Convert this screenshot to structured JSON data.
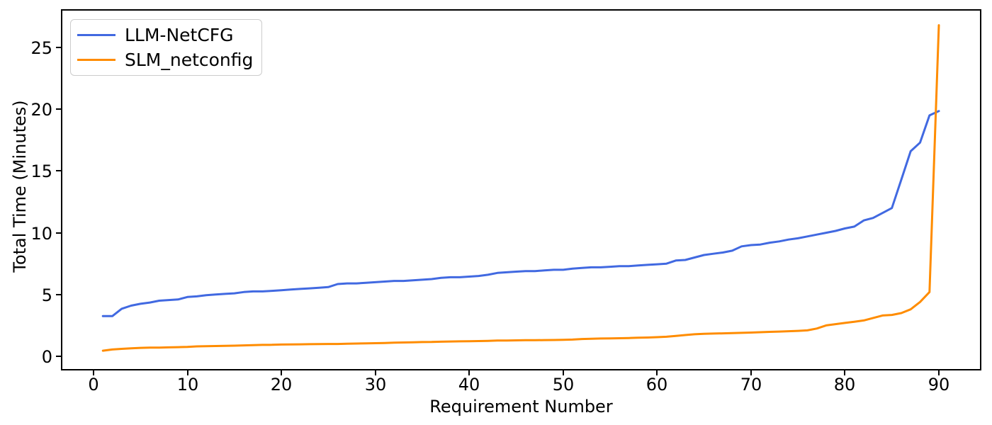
{
  "chart_data": {
    "type": "line",
    "title": "",
    "xlabel": "Requirement Number",
    "ylabel": "Total Time (Minutes)",
    "grid": false,
    "legend_position": "upper-left",
    "x_ticks": [
      0,
      10,
      20,
      30,
      40,
      50,
      60,
      70,
      80,
      90
    ],
    "y_ticks": [
      0,
      5,
      10,
      15,
      20,
      25
    ],
    "xlim": [
      -3.39,
      94.45
    ],
    "ylim": [
      -1.09,
      28.04
    ],
    "x": [
      1,
      2,
      3,
      4,
      5,
      6,
      7,
      8,
      9,
      10,
      11,
      12,
      13,
      14,
      15,
      16,
      17,
      18,
      19,
      20,
      21,
      22,
      23,
      24,
      25,
      26,
      27,
      28,
      29,
      30,
      31,
      32,
      33,
      34,
      35,
      36,
      37,
      38,
      39,
      40,
      41,
      42,
      43,
      44,
      45,
      46,
      47,
      48,
      49,
      50,
      51,
      52,
      53,
      54,
      55,
      56,
      57,
      58,
      59,
      60,
      61,
      62,
      63,
      64,
      65,
      66,
      67,
      68,
      69,
      70,
      71,
      72,
      73,
      74,
      75,
      76,
      77,
      78,
      79,
      80,
      81,
      82,
      83,
      84,
      85,
      86,
      87,
      88,
      89,
      90
    ],
    "series": [
      {
        "name": "LLM-NetCFG",
        "color": "#4169e1",
        "values": [
          3.25,
          3.25,
          3.85,
          4.1,
          4.25,
          4.35,
          4.5,
          4.55,
          4.6,
          4.8,
          4.85,
          4.95,
          5.0,
          5.05,
          5.1,
          5.2,
          5.25,
          5.25,
          5.3,
          5.35,
          5.4,
          5.45,
          5.5,
          5.55,
          5.6,
          5.85,
          5.9,
          5.9,
          5.95,
          6.0,
          6.05,
          6.1,
          6.1,
          6.15,
          6.2,
          6.25,
          6.35,
          6.4,
          6.4,
          6.45,
          6.5,
          6.6,
          6.75,
          6.8,
          6.85,
          6.9,
          6.9,
          6.95,
          7.0,
          7.0,
          7.1,
          7.15,
          7.2,
          7.2,
          7.25,
          7.3,
          7.3,
          7.35,
          7.4,
          7.45,
          7.5,
          7.75,
          7.8,
          8.0,
          8.2,
          8.3,
          8.4,
          8.55,
          8.9,
          9.0,
          9.05,
          9.2,
          9.3,
          9.45,
          9.55,
          9.7,
          9.85,
          10.0,
          10.15,
          10.35,
          10.5,
          11.0,
          11.2,
          11.6,
          12.0,
          14.3,
          16.6,
          17.3,
          19.5,
          19.85
        ]
      },
      {
        "name": "SLM_netconfig",
        "color": "#ff8c00",
        "values": [
          0.45,
          0.55,
          0.6,
          0.65,
          0.68,
          0.7,
          0.7,
          0.72,
          0.74,
          0.76,
          0.8,
          0.82,
          0.83,
          0.85,
          0.86,
          0.88,
          0.9,
          0.92,
          0.93,
          0.95,
          0.96,
          0.97,
          0.98,
          0.99,
          1.0,
          1.0,
          1.02,
          1.03,
          1.05,
          1.06,
          1.08,
          1.1,
          1.12,
          1.13,
          1.15,
          1.16,
          1.18,
          1.2,
          1.21,
          1.22,
          1.23,
          1.25,
          1.27,
          1.28,
          1.29,
          1.3,
          1.3,
          1.31,
          1.32,
          1.33,
          1.35,
          1.4,
          1.42,
          1.44,
          1.45,
          1.46,
          1.48,
          1.5,
          1.52,
          1.55,
          1.58,
          1.65,
          1.72,
          1.78,
          1.82,
          1.84,
          1.86,
          1.88,
          1.9,
          1.92,
          1.95,
          1.98,
          2.0,
          2.03,
          2.06,
          2.1,
          2.25,
          2.5,
          2.6,
          2.7,
          2.8,
          2.9,
          3.1,
          3.3,
          3.35,
          3.5,
          3.8,
          4.4,
          5.2,
          26.8
        ]
      }
    ]
  }
}
